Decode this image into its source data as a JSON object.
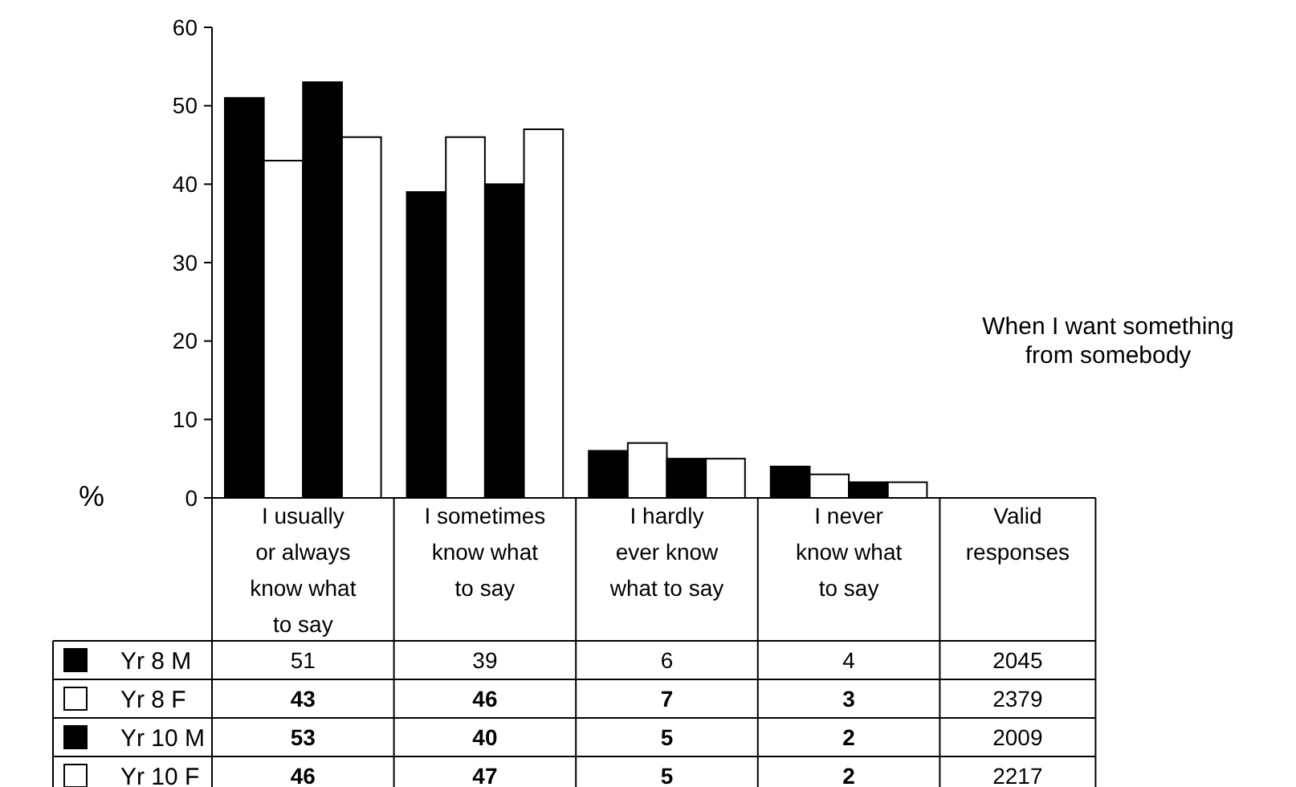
{
  "chart_data": {
    "type": "bar",
    "title": "When I want something from somebody",
    "ylabel": "%",
    "categories": [
      "I usually or always know what to say",
      "I sometimes know what to say",
      "I hardly ever know what to say",
      "I never know what to say",
      "Valid responses"
    ],
    "series": [
      {
        "name": "Yr 8 M",
        "color": "#000000",
        "values": [
          51,
          39,
          6,
          4,
          null
        ],
        "value_labels": [
          "51",
          "39",
          "6",
          "4",
          "2045"
        ]
      },
      {
        "name": "Yr 8 F",
        "color": "#ffffff",
        "values": [
          43,
          46,
          7,
          3,
          null
        ],
        "value_labels": [
          "43",
          "46",
          "7",
          "3",
          "2379"
        ]
      },
      {
        "name": "Yr 10 M",
        "color": "#000000",
        "values": [
          53,
          40,
          5,
          2,
          null
        ],
        "value_labels": [
          "53",
          "40",
          "5",
          "2",
          "2009"
        ]
      },
      {
        "name": "Yr 10 F",
        "color": "#ffffff",
        "values": [
          46,
          47,
          5,
          2,
          null
        ],
        "value_labels": [
          "46",
          "47",
          "5",
          "2",
          "2217"
        ]
      }
    ],
    "ylim": [
      0,
      60
    ],
    "yticks": [
      0,
      10,
      20,
      30,
      40,
      50,
      60
    ],
    "grid": false,
    "legend": "bottom"
  }
}
